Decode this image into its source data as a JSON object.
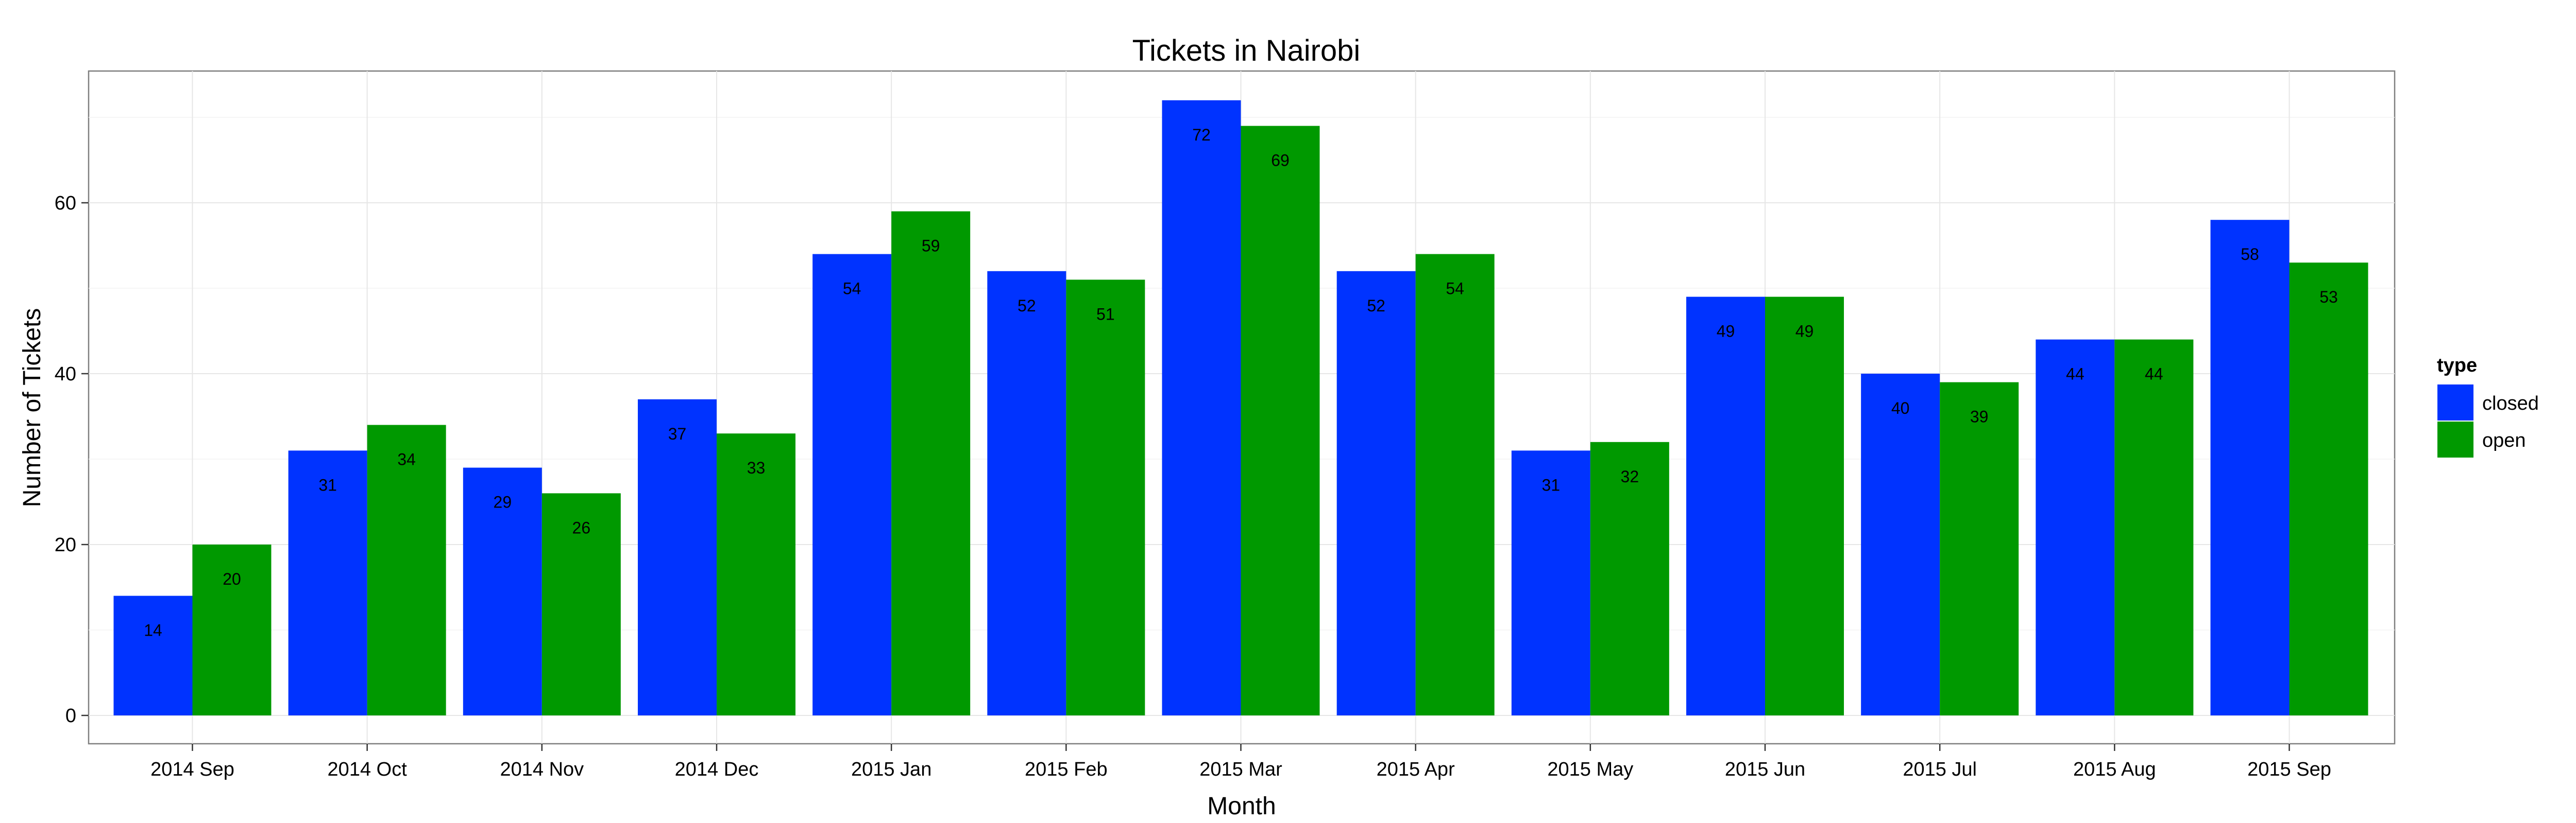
{
  "chart_data": {
    "type": "bar",
    "title": "Tickets in Nairobi",
    "xlabel": "Month",
    "ylabel": "Number of Tickets",
    "categories": [
      "2014 Sep",
      "2014 Oct",
      "2014 Nov",
      "2014 Dec",
      "2015 Jan",
      "2015 Feb",
      "2015 Mar",
      "2015 Apr",
      "2015 May",
      "2015 Jun",
      "2015 Jul",
      "2015 Aug",
      "2015 Sep"
    ],
    "series": [
      {
        "name": "closed",
        "color": "#0033ff",
        "values": [
          14,
          31,
          29,
          37,
          54,
          52,
          72,
          52,
          31,
          49,
          40,
          44,
          58
        ]
      },
      {
        "name": "open",
        "color": "#009900",
        "values": [
          20,
          34,
          26,
          33,
          59,
          51,
          69,
          54,
          32,
          49,
          39,
          44,
          53
        ]
      }
    ],
    "ylim": [
      0,
      75
    ],
    "yticks": [
      0,
      20,
      40,
      60
    ],
    "grid": true,
    "legend": {
      "title": "type",
      "position": "right"
    }
  }
}
